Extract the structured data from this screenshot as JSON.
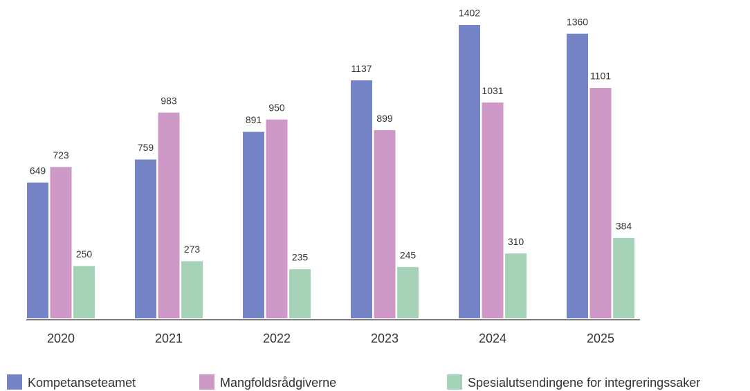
{
  "chart_data": {
    "type": "bar",
    "categories": [
      "2020",
      "2021",
      "2022",
      "2023",
      "2024",
      "2025"
    ],
    "series": [
      {
        "name": "Kompetanseteamet",
        "color": "#7484c4",
        "values": [
          649,
          759,
          891,
          1137,
          1402,
          1360
        ]
      },
      {
        "name": "Mangfoldsrådgiverne",
        "color": "#cd97c6",
        "values": [
          723,
          983,
          950,
          899,
          1031,
          1101
        ]
      },
      {
        "name": "Spesialutsendingene for integreringssaker",
        "color": "#a6d3b8",
        "values": [
          250,
          273,
          235,
          245,
          310,
          384
        ]
      }
    ],
    "legend": "bottom"
  }
}
